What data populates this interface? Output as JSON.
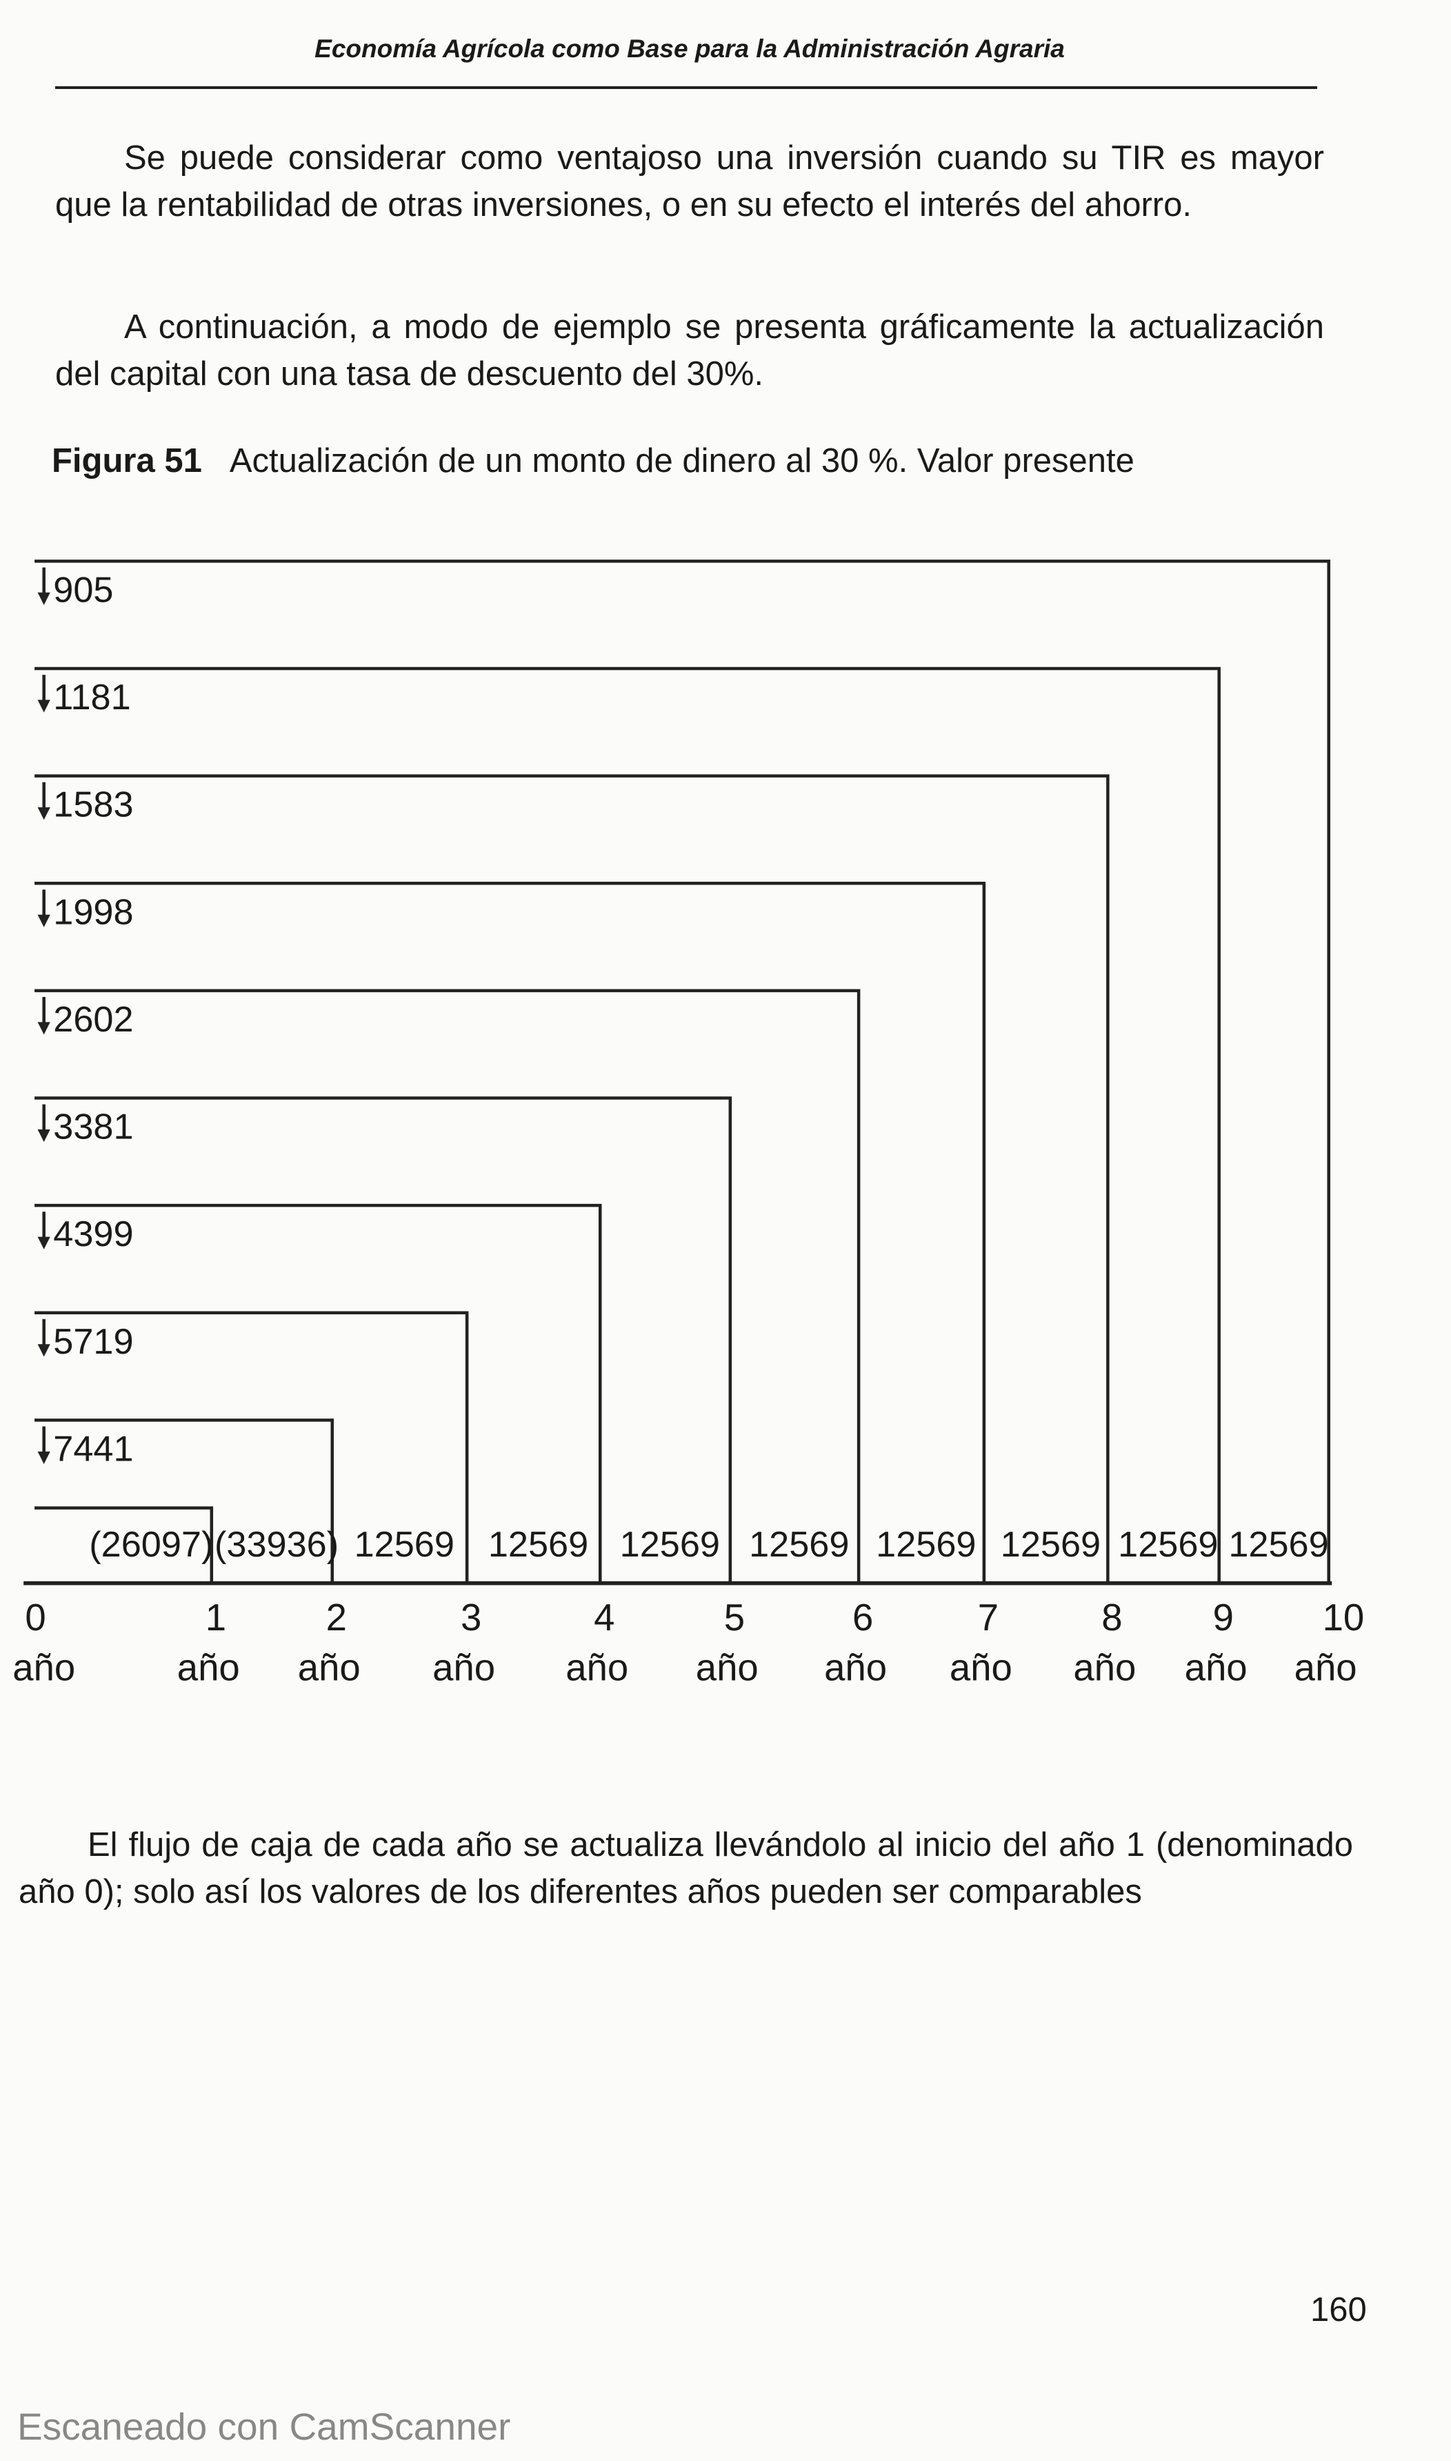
{
  "header": {
    "title": "Economía Agrícola como Base para la Administración Agraria"
  },
  "paragraphs": [
    "Se puede considerar como ventajoso una inversión cuando su TIR es mayor que la rentabilidad de otras inversiones, o en su efecto el interés del ahorro.",
    "A continuación, a modo de ejemplo se presenta gráficamente la actualización del capital con una tasa de descuento del 30%."
  ],
  "figure": {
    "label": "Figura 51",
    "caption": "Actualización de un monto de dinero al 30 %. Valor  presente",
    "present_values": [
      "905",
      "1181",
      "1583",
      "1998",
      "2602",
      "3381",
      "4399",
      "5719",
      "7441"
    ],
    "cash_flows": [
      "(26097)",
      "(33936)",
      "12569",
      "12569",
      "12569",
      "12569",
      "12569",
      "12569",
      "12569",
      "12569"
    ],
    "years": [
      {
        "number": "0",
        "unit": "año"
      },
      {
        "number": "1",
        "unit": "año"
      },
      {
        "number": "2",
        "unit": "año"
      },
      {
        "number": "3",
        "unit": "año"
      },
      {
        "number": "4",
        "unit": "año"
      },
      {
        "number": "5",
        "unit": "año"
      },
      {
        "number": "6",
        "unit": "año"
      },
      {
        "number": "7",
        "unit": "año"
      },
      {
        "number": "8",
        "unit": "año"
      },
      {
        "number": "9",
        "unit": "año"
      },
      {
        "number": "10",
        "unit": "año"
      }
    ]
  },
  "closing_paragraph": "El flujo de caja de cada año se actualiza llevándolo al inicio del año 1 (denominado año 0);  solo así los valores de los diferentes años pueden ser comparables",
  "page_number": "160",
  "footer": "Escaneado con CamScanner"
}
